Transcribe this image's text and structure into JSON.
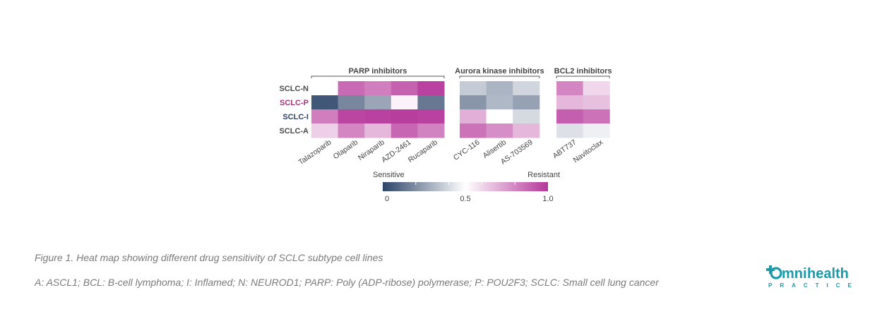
{
  "chart_data": {
    "type": "heatmap",
    "rows": [
      "SCLC-N",
      "SCLC-P",
      "SCLC-I",
      "SCLC-A"
    ],
    "row_colors": [
      "#4a4a4a",
      "#a8327e",
      "#2c4468",
      "#4a4a4a"
    ],
    "groups": [
      {
        "name": "PARP inhibitors",
        "columns": [
          "Talazoparib",
          "Olaparib",
          "Niraparib",
          "AZD-2461",
          "Rucaparib"
        ],
        "values": [
          [
            0.5,
            0.87,
            0.82,
            0.89,
            0.97
          ],
          [
            0.05,
            0.18,
            0.26,
            0.53,
            0.14
          ],
          [
            0.82,
            0.96,
            0.97,
            0.98,
            0.97
          ],
          [
            0.62,
            0.8,
            0.68,
            0.88,
            0.81
          ]
        ]
      },
      {
        "name": "Aurora kinase inhibitors",
        "columns": [
          "CYC-116",
          "Alisertib",
          "AS-703569"
        ],
        "values": [
          [
            0.36,
            0.3,
            0.39
          ],
          [
            0.22,
            0.31,
            0.25
          ],
          [
            0.7,
            0.5,
            0.4
          ],
          [
            0.85,
            0.78,
            0.68
          ]
        ]
      },
      {
        "name": "BCL2 inhibitors",
        "columns": [
          "ABT737",
          "Navitoclax"
        ],
        "values": [
          [
            0.8,
            0.6
          ],
          [
            0.68,
            0.66
          ],
          [
            0.9,
            0.85
          ],
          [
            0.42,
            0.46
          ]
        ]
      }
    ],
    "colorbar": {
      "min_label": "Sensitive",
      "max_label": "Resistant",
      "ticks": [
        "0",
        "0.5",
        "1.0"
      ],
      "range": [
        0,
        1
      ],
      "colors": [
        "#2c4468",
        "#ffffff",
        "#b5369a"
      ]
    }
  },
  "captions": {
    "figure": "Figure 1. Heat map showing different drug sensitivity of SCLC subtype cell lines",
    "abbreviations": "A: ASCL1; BCL: B-cell lymphoma; I: Inflamed; N: NEUROD1; PARP: Poly (ADP-ribose) polymerase; P: POU2F3; SCLC: Small cell lung cancer"
  },
  "logo": {
    "text_prefix": "mni",
    "text_suffix": "health",
    "tagline": "PRACTICE",
    "color": "#1b9aaa"
  }
}
